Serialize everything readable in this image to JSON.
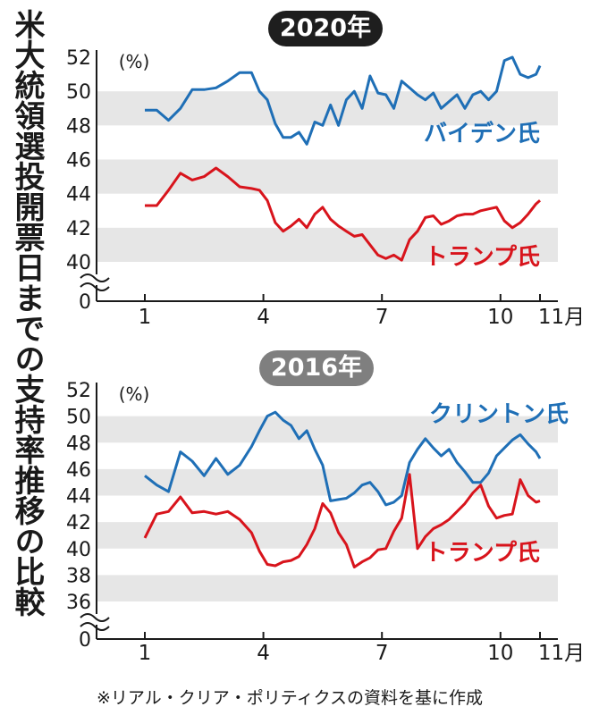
{
  "title": "米大統領選投開票日までの支持率推移の比較",
  "source_note": "※リアル・クリア・ポリティクスの資料を基に作成",
  "colors": {
    "biden": "#1f6fb6",
    "trump": "#d8141c",
    "clinton": "#1f6fb6",
    "band": "#e6e6e6",
    "badge_2020": "#1e1e1e",
    "badge_2016": "#7f7f7f"
  },
  "chart_data": [
    {
      "type": "line",
      "badge": "2020年",
      "unit_label": "(%)",
      "y_ticks": [
        "52",
        "50",
        "48",
        "46",
        "44",
        "42",
        "40"
      ],
      "y_zero": "0",
      "ylim": [
        40,
        52
      ],
      "x_ticks": [
        "1",
        "4",
        "7",
        "10"
      ],
      "x_last_tick": "11月",
      "xlim": [
        1,
        11
      ],
      "grid_bands": true,
      "series": [
        {
          "name": "バイデン氏",
          "color": "#1f6fb6",
          "x": [
            1.0,
            1.3,
            1.6,
            1.9,
            2.2,
            2.5,
            2.8,
            3.1,
            3.4,
            3.7,
            3.9,
            4.1,
            4.3,
            4.5,
            4.7,
            4.9,
            5.1,
            5.3,
            5.5,
            5.7,
            5.9,
            6.1,
            6.3,
            6.5,
            6.7,
            6.9,
            7.1,
            7.3,
            7.5,
            7.7,
            7.9,
            8.1,
            8.3,
            8.5,
            8.7,
            8.9,
            9.1,
            9.3,
            9.5,
            9.7,
            9.9,
            10.1,
            10.3,
            10.5,
            10.7,
            10.9,
            11.0
          ],
          "values": [
            48.9,
            48.9,
            48.3,
            49.0,
            50.1,
            50.1,
            50.2,
            50.6,
            51.1,
            51.1,
            50.0,
            49.5,
            48.1,
            47.3,
            47.3,
            47.6,
            46.9,
            48.2,
            48.0,
            49.2,
            48.0,
            49.5,
            50.0,
            49.0,
            50.9,
            49.9,
            49.8,
            49.0,
            50.6,
            50.2,
            49.8,
            49.5,
            49.9,
            49.0,
            49.4,
            49.8,
            49.0,
            49.8,
            50.0,
            49.5,
            50.0,
            51.8,
            52.0,
            51.0,
            50.8,
            51.0,
            51.5
          ]
        },
        {
          "name": "トランプ氏",
          "color": "#d8141c",
          "x": [
            1.0,
            1.3,
            1.6,
            1.9,
            2.2,
            2.5,
            2.8,
            3.1,
            3.4,
            3.7,
            3.9,
            4.1,
            4.3,
            4.5,
            4.7,
            4.9,
            5.1,
            5.3,
            5.5,
            5.7,
            5.9,
            6.1,
            6.3,
            6.5,
            6.7,
            6.9,
            7.1,
            7.3,
            7.5,
            7.7,
            7.9,
            8.1,
            8.3,
            8.5,
            8.7,
            8.9,
            9.1,
            9.3,
            9.5,
            9.7,
            9.9,
            10.1,
            10.3,
            10.5,
            10.7,
            10.9,
            11.0
          ],
          "values": [
            43.3,
            43.3,
            44.2,
            45.2,
            44.8,
            45.0,
            45.5,
            45.0,
            44.4,
            44.3,
            44.2,
            43.6,
            42.3,
            41.8,
            42.1,
            42.5,
            42.0,
            42.8,
            43.2,
            42.5,
            42.1,
            41.8,
            41.5,
            41.6,
            41.0,
            40.4,
            40.2,
            40.4,
            40.1,
            41.3,
            41.8,
            42.6,
            42.7,
            42.2,
            42.4,
            42.7,
            42.8,
            42.8,
            43.0,
            43.1,
            43.2,
            42.4,
            42.0,
            42.3,
            42.8,
            43.4,
            43.6
          ]
        }
      ]
    },
    {
      "type": "line",
      "badge": "2016年",
      "unit_label": "(%)",
      "y_ticks": [
        "52",
        "50",
        "48",
        "46",
        "44",
        "42",
        "40",
        "38",
        "36"
      ],
      "y_zero": "0",
      "ylim": [
        36,
        52
      ],
      "x_ticks": [
        "1",
        "4",
        "7",
        "10"
      ],
      "x_last_tick": "11月",
      "xlim": [
        1,
        11
      ],
      "grid_bands": true,
      "series": [
        {
          "name": "クリントン氏",
          "color": "#1f6fb6",
          "x": [
            1.0,
            1.3,
            1.6,
            1.9,
            2.2,
            2.5,
            2.8,
            3.1,
            3.4,
            3.7,
            3.9,
            4.1,
            4.3,
            4.5,
            4.7,
            4.9,
            5.1,
            5.3,
            5.5,
            5.7,
            5.9,
            6.1,
            6.3,
            6.5,
            6.7,
            6.9,
            7.1,
            7.3,
            7.5,
            7.7,
            7.9,
            8.1,
            8.3,
            8.5,
            8.7,
            8.9,
            9.1,
            9.3,
            9.5,
            9.7,
            9.9,
            10.1,
            10.3,
            10.5,
            10.7,
            10.9,
            11.0
          ],
          "values": [
            45.5,
            44.8,
            44.3,
            47.3,
            46.6,
            45.5,
            46.8,
            45.6,
            46.3,
            47.7,
            48.9,
            50.0,
            50.3,
            49.7,
            49.3,
            48.3,
            48.9,
            47.5,
            46.3,
            43.6,
            43.7,
            43.8,
            44.2,
            44.8,
            45.0,
            44.3,
            43.3,
            43.5,
            44.0,
            46.5,
            47.5,
            48.3,
            47.6,
            47.0,
            47.5,
            46.5,
            45.8,
            45.0,
            45.0,
            45.7,
            47.0,
            47.6,
            48.2,
            48.6,
            47.9,
            47.3,
            46.8
          ]
        },
        {
          "name": "トランプ氏",
          "color": "#d8141c",
          "x": [
            1.0,
            1.3,
            1.6,
            1.9,
            2.2,
            2.5,
            2.8,
            3.1,
            3.4,
            3.7,
            3.9,
            4.1,
            4.3,
            4.5,
            4.7,
            4.9,
            5.1,
            5.3,
            5.5,
            5.7,
            5.9,
            6.1,
            6.3,
            6.5,
            6.7,
            6.9,
            7.1,
            7.3,
            7.5,
            7.7,
            7.9,
            8.1,
            8.3,
            8.5,
            8.7,
            8.9,
            9.1,
            9.3,
            9.5,
            9.7,
            9.9,
            10.1,
            10.3,
            10.5,
            10.7,
            10.9,
            11.0
          ],
          "values": [
            40.8,
            42.6,
            42.8,
            43.9,
            42.7,
            42.8,
            42.6,
            42.8,
            42.2,
            41.2,
            39.8,
            38.8,
            38.7,
            39.0,
            39.1,
            39.4,
            40.3,
            41.5,
            43.4,
            42.7,
            41.2,
            40.3,
            38.6,
            39.0,
            39.3,
            39.9,
            40.0,
            41.3,
            42.3,
            45.6,
            40.0,
            40.9,
            41.5,
            41.8,
            42.2,
            42.8,
            43.4,
            44.2,
            44.8,
            43.2,
            42.3,
            42.5,
            42.6,
            45.2,
            44.0,
            43.5,
            43.6
          ]
        }
      ]
    }
  ]
}
